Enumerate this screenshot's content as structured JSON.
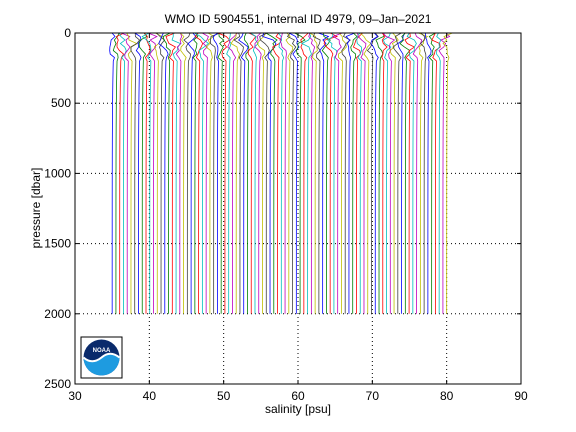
{
  "chart_data": {
    "type": "line",
    "title": "WMO ID 5904551, internal ID 4979, 09–Jan–2021",
    "xlabel": "salinity [psu]",
    "ylabel": "pressure [dbar]",
    "xlim": [
      30,
      90
    ],
    "ylim": [
      0,
      2500
    ],
    "y_reversed": true,
    "grid": true,
    "x_ticks": [
      "30",
      "40",
      "50",
      "60",
      "70",
      "80",
      "90"
    ],
    "y_ticks": [
      "0",
      "500",
      "1000",
      "1500",
      "2000",
      "2500"
    ],
    "profile_offset_start": 35,
    "profile_offset_end": 80,
    "profile_count": 90,
    "max_pressure": 2000,
    "colors": [
      "#0000ff",
      "#008000",
      "#ff0000",
      "#00bfbf",
      "#bf00bf",
      "#bfbf00",
      "#404040"
    ],
    "logo": {
      "text": "NOAA"
    }
  }
}
